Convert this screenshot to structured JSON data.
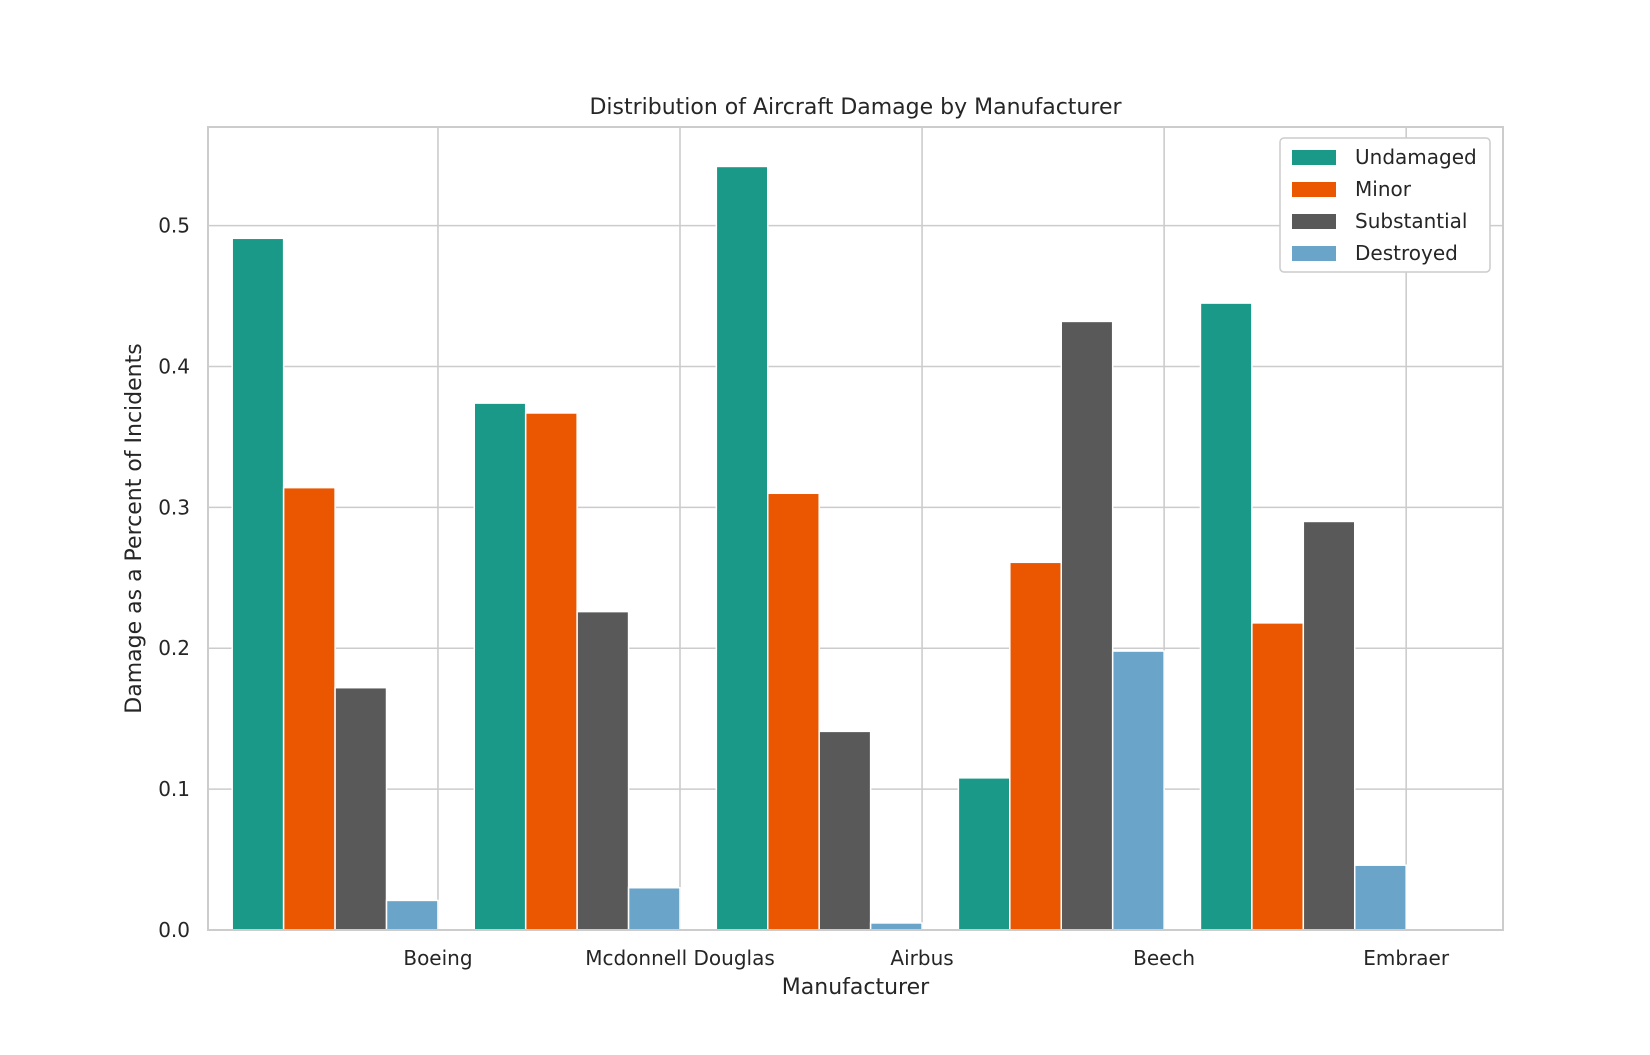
{
  "chart_data": {
    "type": "bar",
    "title": "Distribution of Aircraft Damage by Manufacturer",
    "xlabel": "Manufacturer",
    "ylabel": "Damage as a Percent of Incidents",
    "categories": [
      "Boeing",
      "Mcdonnell Douglas",
      "Airbus",
      "Beech",
      "Embraer"
    ],
    "series": [
      {
        "name": "Undamaged",
        "color": "#1a9988",
        "values": [
          0.491,
          0.374,
          0.542,
          0.108,
          0.445
        ]
      },
      {
        "name": "Minor",
        "color": "#eb5600",
        "values": [
          0.314,
          0.367,
          0.31,
          0.261,
          0.218
        ]
      },
      {
        "name": "Substantial",
        "color": "#595959",
        "values": [
          0.172,
          0.226,
          0.141,
          0.432,
          0.29
        ]
      },
      {
        "name": "Destroyed",
        "color": "#6aa4c8",
        "values": [
          0.021,
          0.03,
          0.005,
          0.198,
          0.046
        ]
      }
    ],
    "ylim": [
      0,
      0.57
    ],
    "yticks": [
      0.0,
      0.1,
      0.2,
      0.3,
      0.4,
      0.5
    ],
    "ytick_labels": [
      "0.0",
      "0.1",
      "0.2",
      "0.3",
      "0.4",
      "0.5"
    ],
    "grid": true,
    "legend_position": "top-right"
  }
}
